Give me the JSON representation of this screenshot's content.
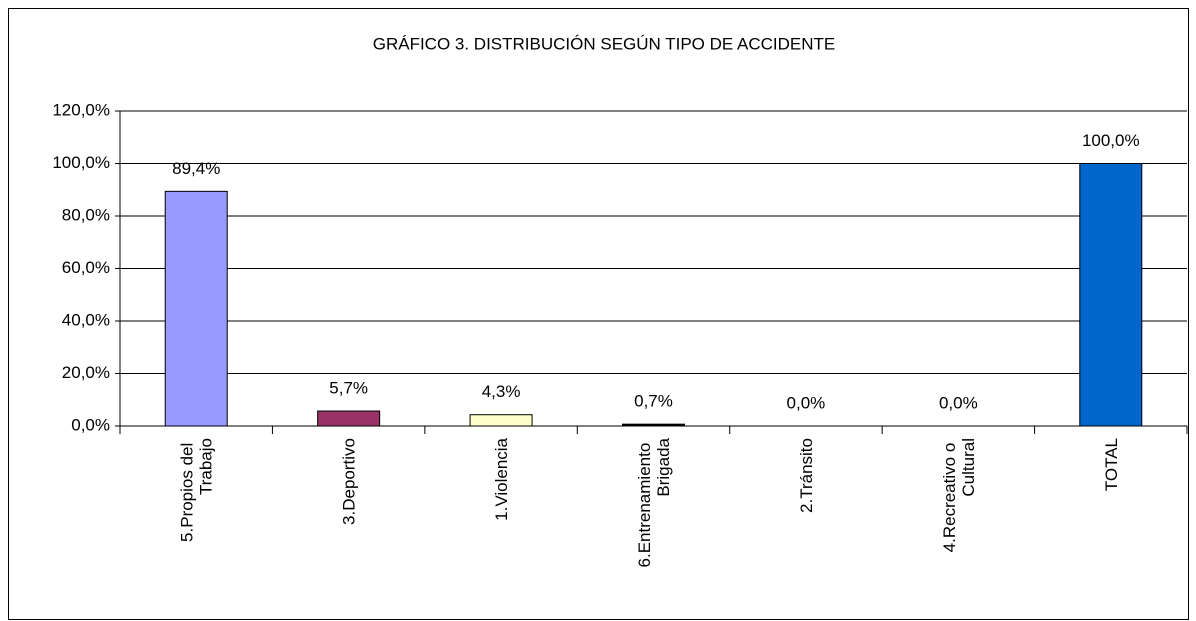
{
  "chart_data": {
    "type": "bar",
    "title": "GRÁFICO 3. DISTRIBUCIÓN  SEGÚN TIPO  DE ACCIDENTE",
    "categories": [
      "5.Propios del Trabajo",
      "3.Deportivo",
      "1.Violencia",
      "6.Entrenamiento Brigada",
      "2.Tránsito",
      "4.Recreativo o Cultural",
      "TOTAL"
    ],
    "values": [
      89.4,
      5.7,
      4.3,
      0.7,
      0.0,
      0.0,
      100.0
    ],
    "value_labels": [
      "89,4%",
      "5,7%",
      "4,3%",
      "0,7%",
      "0,0%",
      "0,0%",
      "100,0%"
    ],
    "colors": [
      "#9999ff",
      "#993366",
      "#ffffcc",
      "#000000",
      "#c0c0c0",
      "#c0c0c0",
      "#0066cc"
    ],
    "ylim": [
      0,
      120
    ],
    "yticks": [
      {
        "value": 0,
        "label": "0,0%"
      },
      {
        "value": 20,
        "label": "20,0%"
      },
      {
        "value": 40,
        "label": "40,0%"
      },
      {
        "value": 60,
        "label": "60,0%"
      },
      {
        "value": 80,
        "label": "80,0%"
      },
      {
        "value": 100,
        "label": "100,0%"
      },
      {
        "value": 120,
        "label": "120,0%"
      }
    ],
    "grid": true
  }
}
